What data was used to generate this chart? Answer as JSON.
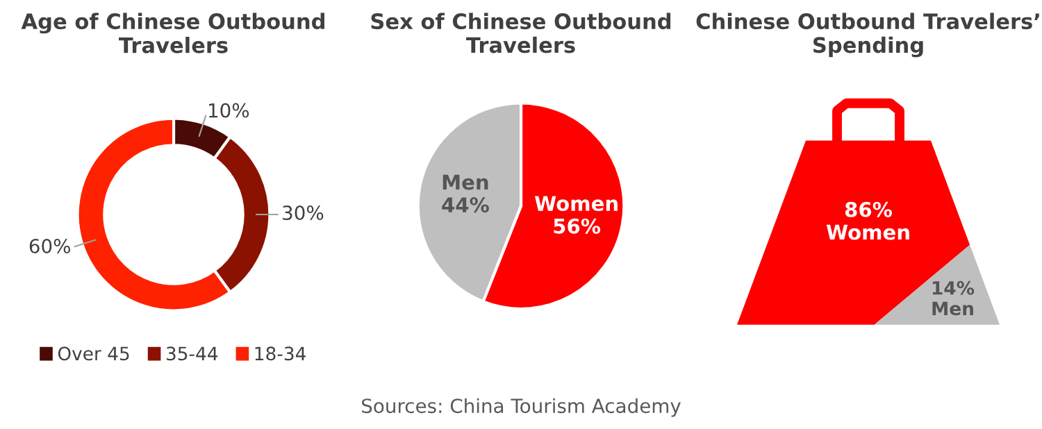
{
  "chart_data": [
    {
      "type": "donut",
      "title": "Age of Chinese Outbound Travelers",
      "categories": [
        "Over 45",
        "35-44",
        "18-34"
      ],
      "values": [
        10,
        30,
        60
      ],
      "value_labels": [
        "10%",
        "30%",
        "60%"
      ],
      "colors": [
        "#4a0a05",
        "#8b1200",
        "#ff2200"
      ],
      "legend": "bottom"
    },
    {
      "type": "pie",
      "title": "Sex of Chinese Outbound Travelers",
      "categories": [
        "Women",
        "Men"
      ],
      "values": [
        56,
        44
      ],
      "value_labels": [
        "56%",
        "44%"
      ],
      "colors": [
        "#ff0000",
        "#bfbfbf"
      ]
    },
    {
      "type": "other",
      "title": "Chinese Outbound Travelers’ Spending",
      "categories": [
        "Women",
        "Men"
      ],
      "values": [
        86,
        14
      ],
      "value_labels": [
        "86%",
        "14%"
      ],
      "colors": [
        "#ff0000",
        "#bfbfbf"
      ],
      "annotations": [
        "Sources: China Tourism Academy"
      ]
    }
  ]
}
